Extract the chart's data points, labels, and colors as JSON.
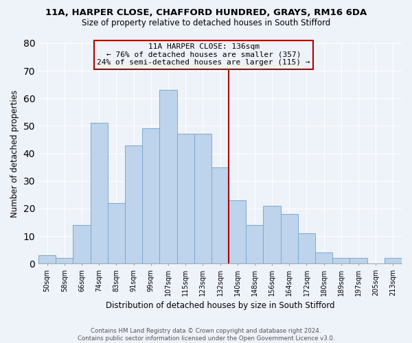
{
  "title1": "11A, HARPER CLOSE, CHAFFORD HUNDRED, GRAYS, RM16 6DA",
  "title2": "Size of property relative to detached houses in South Stifford",
  "xlabel": "Distribution of detached houses by size in South Stifford",
  "ylabel": "Number of detached properties",
  "bar_labels": [
    "50sqm",
    "58sqm",
    "66sqm",
    "74sqm",
    "83sqm",
    "91sqm",
    "99sqm",
    "107sqm",
    "115sqm",
    "123sqm",
    "132sqm",
    "140sqm",
    "148sqm",
    "156sqm",
    "164sqm",
    "172sqm",
    "180sqm",
    "189sqm",
    "197sqm",
    "205sqm",
    "213sqm"
  ],
  "bar_values": [
    3,
    2,
    14,
    51,
    22,
    43,
    49,
    63,
    47,
    47,
    35,
    23,
    14,
    21,
    18,
    11,
    4,
    2,
    2,
    0,
    2
  ],
  "bar_color": "#bed3ec",
  "bar_edge_color": "#7aaad0",
  "vline_color": "#aa0000",
  "annotation_title": "11A HARPER CLOSE: 136sqm",
  "annotation_line1": "← 76% of detached houses are smaller (357)",
  "annotation_line2": "24% of semi-detached houses are larger (115) →",
  "box_edge_color": "#aa0000",
  "ylim": [
    0,
    80
  ],
  "yticks": [
    0,
    10,
    20,
    30,
    40,
    50,
    60,
    70,
    80
  ],
  "footer1": "Contains HM Land Registry data © Crown copyright and database right 2024.",
  "footer2": "Contains public sector information licensed under the Open Government Licence v3.0.",
  "bg_color": "#eef2f9",
  "grid_color": "#ffffff",
  "title1_fontsize": 9.5,
  "title2_fontsize": 8.5,
  "annotation_fontsize": 8.0,
  "ylabel_fontsize": 8.5,
  "xlabel_fontsize": 8.5,
  "tick_fontsize": 7.0,
  "footer_fontsize": 6.2
}
